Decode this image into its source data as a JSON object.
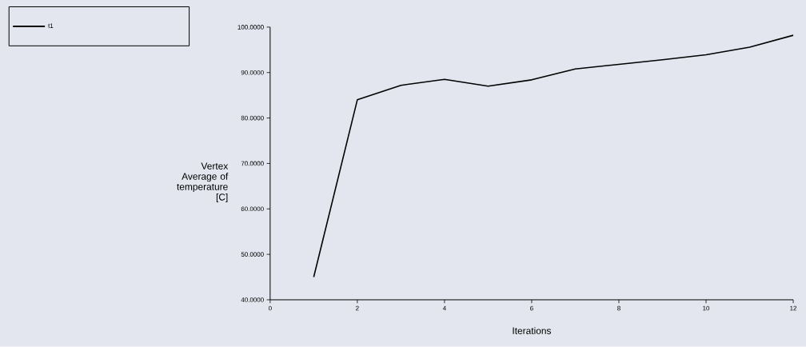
{
  "chart_data": {
    "type": "line",
    "xlabel": "Iterations",
    "ylabel": "Vertex Average of temperature [C]",
    "x": [
      1,
      2,
      3,
      4,
      5,
      6,
      7,
      8,
      9,
      10,
      11,
      12
    ],
    "series": [
      {
        "name": "t1",
        "color": "#000000",
        "values": [
          45,
          84,
          87.2,
          88.5,
          87,
          88.4,
          90.8,
          91.8,
          92.8,
          93.9,
          95.6,
          98.2
        ]
      }
    ],
    "xlim": [
      0,
      12
    ],
    "ylim": [
      40,
      100
    ],
    "xticks": [
      0,
      2,
      4,
      6,
      8,
      10,
      12
    ],
    "yticks": [
      {
        "value": 40,
        "label": "40.0000"
      },
      {
        "value": 50,
        "label": "50.0000"
      },
      {
        "value": 60,
        "label": "60.0000"
      },
      {
        "value": 70,
        "label": "70.0000"
      },
      {
        "value": 80,
        "label": "80.0000"
      },
      {
        "value": 90,
        "label": "90.0000"
      },
      {
        "value": 100,
        "label": "100.0000"
      }
    ],
    "grid": false,
    "legend": "top left",
    "marker": "none",
    "line_style": "solid"
  }
}
